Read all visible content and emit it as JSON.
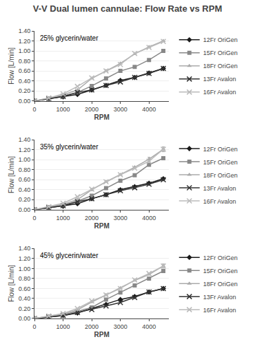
{
  "chart_data": [
    {
      "type": "line",
      "title": "V-V Dual lumen cannulae: Flow Rate vs RPM",
      "annotations": [
        "25% glycerin/water"
      ],
      "xlabel": "RPM",
      "ylabel": "Flow [L/min]",
      "xlim": [
        0,
        4700
      ],
      "xticks": [
        0,
        1000,
        2000,
        3000,
        4000
      ],
      "ylim": [
        0,
        1.4
      ],
      "yticks": [
        {
          "value": 0.0,
          "label": "0.00"
        },
        {
          "value": 0.2,
          "label": "0.20"
        },
        {
          "value": 0.4,
          "label": "0.40"
        },
        {
          "value": 0.6,
          "label": "0.60"
        },
        {
          "value": 0.8,
          "label": "0.80"
        },
        {
          "value": 1.0,
          "label": "1.00"
        },
        {
          "value": 1.2,
          "label": "1.20"
        },
        {
          "value": 1.4,
          "label": "1.40"
        }
      ],
      "grid": "y",
      "legend": "right",
      "x": [
        0,
        500,
        1000,
        1500,
        2000,
        2500,
        3000,
        3500,
        4000,
        4500
      ],
      "series": [
        {
          "name": "12Fr OriGen",
          "color": "#1a1a1a",
          "marker": "diamond",
          "values": [
            0.0,
            0.04,
            0.08,
            0.13,
            0.22,
            0.31,
            0.41,
            0.47,
            0.56,
            0.65
          ],
          "yerr": [
            0,
            0,
            0,
            0,
            0,
            0,
            0,
            0,
            0,
            0
          ]
        },
        {
          "name": "15Fr OriGen",
          "color": "#888888",
          "marker": "square",
          "values": [
            0.0,
            0.05,
            0.1,
            0.17,
            0.3,
            0.45,
            0.6,
            0.68,
            0.82,
            1.0
          ],
          "yerr": [
            0,
            0,
            0,
            0,
            0,
            0,
            0,
            0,
            0,
            0
          ]
        },
        {
          "name": "18Fr OriGen",
          "color": "#aaaaaa",
          "marker": "triangle",
          "values": [
            0.0,
            0.05,
            0.12,
            0.22,
            0.45,
            0.6,
            0.75,
            0.94,
            1.08,
            1.2
          ],
          "yerr": [
            0,
            0,
            0,
            0,
            0,
            0,
            0,
            0,
            0,
            0
          ]
        },
        {
          "name": "13Fr Avalon",
          "color": "#333333",
          "marker": "x",
          "values": [
            0.0,
            0.04,
            0.09,
            0.17,
            0.22,
            0.31,
            0.38,
            0.47,
            0.55,
            0.65
          ],
          "yerr": [
            0,
            0,
            0,
            0,
            0,
            0,
            0,
            0,
            0,
            0
          ]
        },
        {
          "name": "16Fr Avalon",
          "color": "#bbbbbb",
          "marker": "x",
          "values": [
            0.0,
            0.06,
            0.14,
            0.29,
            0.46,
            0.6,
            0.73,
            0.95,
            1.07,
            1.19
          ],
          "yerr": [
            0,
            0,
            0,
            0,
            0,
            0,
            0,
            0,
            0,
            0
          ]
        }
      ]
    },
    {
      "type": "line",
      "annotations": [
        "35% glycerin/water"
      ],
      "xlabel": "RPM",
      "ylabel": "Flow [L/min]",
      "xlim": [
        0,
        4700
      ],
      "xticks": [
        0,
        1000,
        2000,
        3000,
        4000
      ],
      "ylim": [
        0,
        1.4
      ],
      "yticks": [
        {
          "value": 0.0,
          "label": "0.00"
        },
        {
          "value": 0.2,
          "label": "0.20"
        },
        {
          "value": 0.4,
          "label": "0.40"
        },
        {
          "value": 0.6,
          "label": "0.60"
        },
        {
          "value": 0.8,
          "label": "0.80"
        },
        {
          "value": 1.0,
          "label": "1.00"
        },
        {
          "value": 1.2,
          "label": "1.20"
        },
        {
          "value": 1.4,
          "label": "1.40"
        }
      ],
      "grid": "y",
      "legend": "right",
      "x": [
        0,
        500,
        1000,
        1500,
        2000,
        2500,
        3000,
        3500,
        4000,
        4500
      ],
      "series": [
        {
          "name": "12Fr OriGen",
          "color": "#1a1a1a",
          "marker": "diamond",
          "values": [
            0.0,
            0.04,
            0.07,
            0.12,
            0.22,
            0.3,
            0.4,
            0.46,
            0.53,
            0.62
          ],
          "yerr": [
            0,
            0,
            0,
            0,
            0,
            0,
            0,
            0,
            0,
            0
          ]
        },
        {
          "name": "15Fr OriGen",
          "color": "#888888",
          "marker": "square",
          "values": [
            0.0,
            0.05,
            0.09,
            0.17,
            0.28,
            0.43,
            0.58,
            0.69,
            0.9,
            1.03
          ],
          "yerr": [
            0,
            0,
            0,
            0,
            0,
            0,
            0,
            0,
            0,
            0
          ]
        },
        {
          "name": "18Fr OriGen",
          "color": "#aaaaaa",
          "marker": "triangle",
          "values": [
            0.0,
            0.05,
            0.11,
            0.2,
            0.4,
            0.56,
            0.7,
            0.85,
            1.01,
            1.21
          ],
          "yerr": [
            0,
            0,
            0,
            0,
            0.02,
            0,
            0,
            0,
            0.04,
            0.05
          ]
        },
        {
          "name": "13Fr Avalon",
          "color": "#333333",
          "marker": "x",
          "values": [
            0.0,
            0.04,
            0.08,
            0.16,
            0.22,
            0.3,
            0.38,
            0.44,
            0.51,
            0.6
          ],
          "yerr": [
            0,
            0,
            0,
            0,
            0,
            0,
            0,
            0,
            0,
            0
          ]
        },
        {
          "name": "16Fr Avalon",
          "color": "#bbbbbb",
          "marker": "x",
          "values": [
            0.0,
            0.06,
            0.13,
            0.26,
            0.41,
            0.56,
            0.7,
            0.83,
            0.97,
            1.21
          ],
          "yerr": [
            0,
            0,
            0,
            0,
            0,
            0,
            0,
            0,
            0,
            0.04
          ]
        }
      ]
    },
    {
      "type": "line",
      "annotations": [
        "45% glycerin/water"
      ],
      "xlabel": "RPM",
      "ylabel": "Flow [L/min]",
      "xlim": [
        0,
        4700
      ],
      "xticks": [
        0,
        1000,
        2000,
        3000,
        4000
      ],
      "ylim": [
        0,
        1.4
      ],
      "yticks": [
        {
          "value": 0.0,
          "label": "0.00"
        },
        {
          "value": 0.2,
          "label": "0.20"
        },
        {
          "value": 0.4,
          "label": "0.40"
        },
        {
          "value": 0.6,
          "label": "0.60"
        },
        {
          "value": 0.8,
          "label": "0.80"
        },
        {
          "value": 1.0,
          "label": "1.00"
        },
        {
          "value": 1.2,
          "label": "1.20"
        },
        {
          "value": 1.4,
          "label": "1.40"
        }
      ],
      "grid": "y",
      "legend": "right",
      "x": [
        0,
        500,
        1000,
        1500,
        2000,
        2500,
        3000,
        3500,
        4000,
        4500
      ],
      "series": [
        {
          "name": "12Fr OriGen",
          "color": "#1a1a1a",
          "marker": "diamond",
          "values": [
            0.0,
            0.03,
            0.06,
            0.11,
            0.2,
            0.28,
            0.38,
            0.44,
            0.53,
            0.6
          ],
          "yerr": [
            0,
            0,
            0,
            0,
            0,
            0,
            0,
            0,
            0,
            0
          ]
        },
        {
          "name": "15Fr OriGen",
          "color": "#888888",
          "marker": "square",
          "values": [
            0.0,
            0.04,
            0.08,
            0.14,
            0.22,
            0.38,
            0.52,
            0.66,
            0.8,
            0.95
          ],
          "yerr": [
            0,
            0,
            0,
            0,
            0,
            0,
            0,
            0,
            0,
            0
          ]
        },
        {
          "name": "18Fr OriGen",
          "color": "#aaaaaa",
          "marker": "triangle",
          "values": [
            0.0,
            0.04,
            0.09,
            0.17,
            0.33,
            0.47,
            0.61,
            0.76,
            0.88,
            1.05
          ],
          "yerr": [
            0,
            0,
            0,
            0,
            0,
            0,
            0,
            0,
            0,
            0.04
          ]
        },
        {
          "name": "13Fr Avalon",
          "color": "#333333",
          "marker": "x",
          "values": [
            0.0,
            0.03,
            0.06,
            0.12,
            0.18,
            0.25,
            0.32,
            0.42,
            0.53,
            0.6
          ],
          "yerr": [
            0,
            0,
            0,
            0,
            0,
            0,
            0,
            0,
            0,
            0
          ]
        },
        {
          "name": "16Fr Avalon",
          "color": "#bbbbbb",
          "marker": "x",
          "values": [
            0.0,
            0.05,
            0.1,
            0.2,
            0.35,
            0.47,
            0.6,
            0.77,
            0.9,
            1.05
          ],
          "yerr": [
            0,
            0,
            0,
            0,
            0,
            0,
            0,
            0,
            0,
            0.04
          ]
        }
      ]
    }
  ]
}
